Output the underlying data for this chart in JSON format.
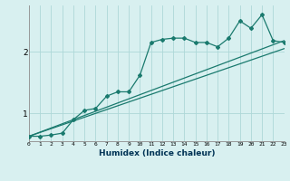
{
  "xlabel": "Humidex (Indice chaleur)",
  "bg_color": "#d8f0f0",
  "line_color": "#1a7a6e",
  "grid_color": "#aed8d8",
  "x_ticks": [
    0,
    1,
    2,
    3,
    4,
    5,
    6,
    7,
    8,
    9,
    10,
    11,
    12,
    13,
    14,
    15,
    16,
    17,
    18,
    19,
    20,
    21,
    22,
    23
  ],
  "y_ticks": [
    1,
    2
  ],
  "xlim": [
    0,
    23
  ],
  "ylim": [
    0.55,
    2.75
  ],
  "curve_x": [
    0,
    1,
    2,
    3,
    4,
    5,
    6,
    7,
    8,
    9,
    10,
    11,
    12,
    13,
    14,
    15,
    16,
    17,
    18,
    19,
    20,
    21,
    22,
    23
  ],
  "curve_y": [
    0.63,
    0.63,
    0.65,
    0.68,
    0.9,
    1.05,
    1.08,
    1.28,
    1.35,
    1.35,
    1.62,
    2.15,
    2.2,
    2.22,
    2.22,
    2.15,
    2.15,
    2.08,
    2.22,
    2.5,
    2.38,
    2.6,
    2.18,
    2.15
  ],
  "line2_x": [
    0,
    23
  ],
  "line2_y": [
    0.63,
    2.18
  ],
  "line3_x": [
    0,
    23
  ],
  "line3_y": [
    0.63,
    2.05
  ]
}
